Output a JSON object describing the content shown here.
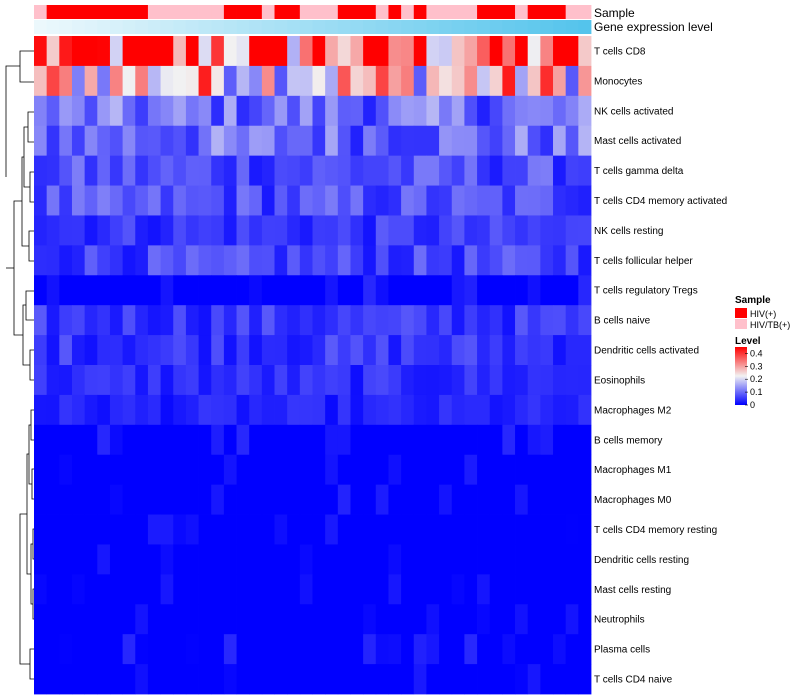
{
  "chart_data": {
    "type": "heatmap",
    "annotations": {
      "sample_label": "Sample",
      "expression_label": "Gene expression level"
    },
    "rows": [
      "T cells CD8",
      "Monocytes",
      "NK cells activated",
      "Mast cells activated",
      "T cells gamma delta",
      "T cells CD4 memory activated",
      "NK cells resting",
      "T cells follicular helper",
      "T cells regulatory  Tregs",
      "B cells naive",
      "Dendritic cells activated",
      "Eosinophils",
      "Macrophages M2",
      "B cells memory",
      "Macrophages M1",
      "Macrophages M0",
      "T cells CD4 memory resting",
      "Dendritic cells resting",
      "Mast cells resting",
      "Neutrophils",
      "Plasma cells",
      "T cells CD4 naive"
    ],
    "row_means": [
      0.36,
      0.26,
      0.1,
      0.1,
      0.07,
      0.07,
      0.05,
      0.06,
      0.02,
      0.05,
      0.05,
      0.04,
      0.03,
      0.02,
      0.015,
      0.015,
      0.005,
      0.005,
      0.003,
      0.002,
      0.02,
      0.01
    ],
    "n_samples": 44,
    "sample_groups": [
      "pink",
      "red",
      "red",
      "red",
      "red",
      "red",
      "red",
      "red",
      "red",
      "pink",
      "pink",
      "pink",
      "pink",
      "pink",
      "pink",
      "red",
      "red",
      "red",
      "pink",
      "red",
      "red",
      "pink",
      "pink",
      "pink",
      "red",
      "red",
      "red",
      "pink",
      "red",
      "pink",
      "red",
      "pink",
      "pink",
      "pink",
      "pink",
      "red",
      "red",
      "red",
      "pink",
      "red",
      "red",
      "red",
      "pink",
      "pink"
    ],
    "legend": {
      "sample_title": "Sample",
      "sample_items": [
        {
          "label": "HIV(+)",
          "color": "#FF0000"
        },
        {
          "label": "HIV/TB(+)",
          "color": "#FFC0CB"
        }
      ],
      "level_title": "Level",
      "level_ticks": [
        "0.4",
        "0.3",
        "0.2",
        "0.1",
        "0"
      ],
      "level_range": [
        0,
        0.45
      ],
      "colors": {
        "low": "#0000FF",
        "mid": "#F2F2F2",
        "high": "#FF0000"
      }
    }
  }
}
